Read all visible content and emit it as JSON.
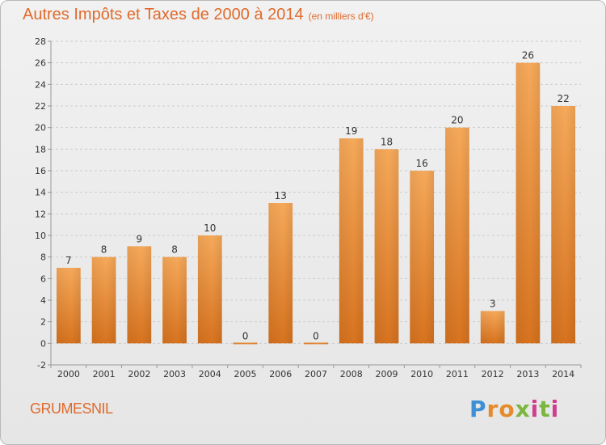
{
  "header": {
    "title": "Autres Impôts et Taxes de 2000 à 2014",
    "unit": "(en milliers d'€)"
  },
  "footer": {
    "place": "GRUMESNIL",
    "logo": [
      "P",
      "r",
      "o",
      "x",
      "i",
      "t",
      "i"
    ]
  },
  "colors": {
    "title": "#e06a2c",
    "bar_light": "#f6a95a",
    "bar_dark": "#d7731f",
    "axis": "#999999",
    "grid": "#cccccc"
  },
  "chart_data": {
    "type": "bar",
    "categories": [
      "2000",
      "2001",
      "2002",
      "2003",
      "2004",
      "2005",
      "2006",
      "2007",
      "2008",
      "2009",
      "2010",
      "2011",
      "2012",
      "2013",
      "2014"
    ],
    "values": [
      7,
      8,
      9,
      8,
      10,
      0,
      13,
      0,
      19,
      18,
      16,
      20,
      3,
      26,
      22
    ],
    "ylim": [
      -2,
      28
    ],
    "yticks": [
      -2,
      0,
      2,
      4,
      6,
      8,
      10,
      12,
      14,
      16,
      18,
      20,
      22,
      24,
      26,
      28
    ],
    "title": "Autres Impôts et Taxes de 2000 à 2014",
    "xlabel": "",
    "ylabel": "",
    "grid": "horizontal dashed"
  }
}
